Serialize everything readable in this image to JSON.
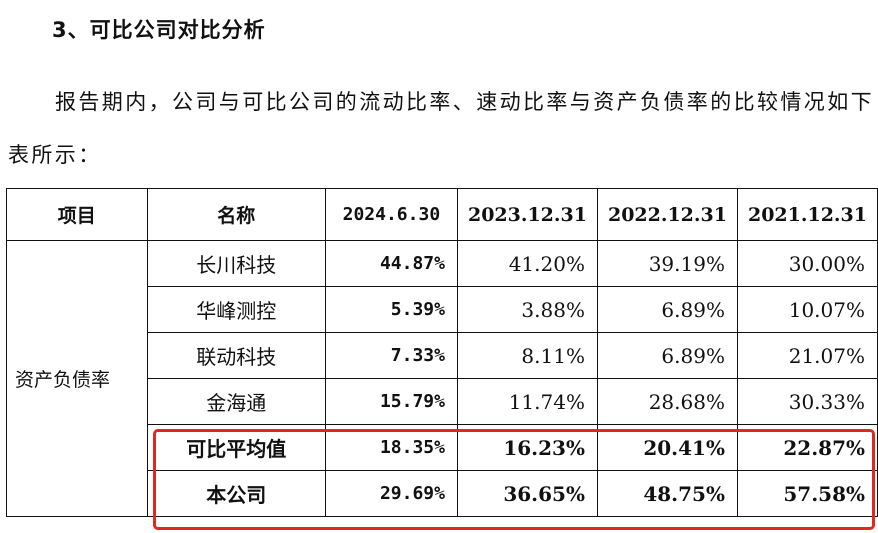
{
  "heading": "3、可比公司对比分析",
  "paragraph": "报告期内，公司与可比公司的流动比率、速动比率与资产负债率的比较情况如下表所示：",
  "table": {
    "headers": [
      "项目",
      "名称",
      "2024.6.30",
      "2023.12.31",
      "2022.12.31",
      "2021.12.31"
    ],
    "category": "资产负债率",
    "rows": [
      {
        "name": "长川科技",
        "values": [
          "44.87%",
          "41.20%",
          "39.19%",
          "30.00%"
        ]
      },
      {
        "name": "华峰测控",
        "values": [
          "5.39%",
          "3.88%",
          "6.89%",
          "10.07%"
        ]
      },
      {
        "name": "联动科技",
        "values": [
          "7.33%",
          "8.11%",
          "6.89%",
          "21.07%"
        ]
      },
      {
        "name": "金海通",
        "values": [
          "15.79%",
          "11.74%",
          "28.68%",
          "30.33%"
        ]
      },
      {
        "name": "可比平均值",
        "values": [
          "18.35%",
          "16.23%",
          "20.41%",
          "22.87%"
        ]
      },
      {
        "name": "本公司",
        "values": [
          "29.69%",
          "36.65%",
          "48.75%",
          "57.58%"
        ]
      }
    ]
  },
  "highlight_color": "#e0281e"
}
